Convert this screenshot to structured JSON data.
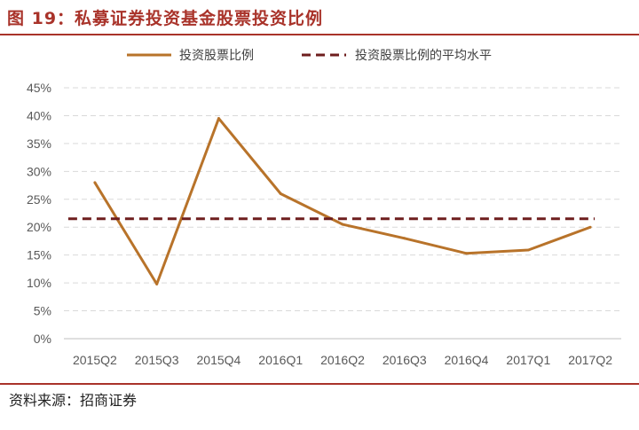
{
  "header": {
    "title": "图 19：私募证券投资基金股票投资比例"
  },
  "footer": {
    "source": "资料来源：招商证券"
  },
  "colors": {
    "accent": "#a9332a",
    "series_line": "#b8732a",
    "average_line": "#6e1e1e",
    "grid": "#d9d9d9",
    "tick_text": "#595959"
  },
  "chart_data": {
    "type": "line",
    "title": "",
    "xlabel": "",
    "ylabel": "",
    "categories": [
      "2015Q2",
      "2015Q3",
      "2015Q4",
      "2016Q1",
      "2016Q2",
      "2016Q3",
      "2016Q4",
      "2017Q1",
      "2017Q2"
    ],
    "y_ticks": [
      "0%",
      "5%",
      "10%",
      "15%",
      "20%",
      "25%",
      "30%",
      "35%",
      "40%",
      "45%"
    ],
    "ylim": [
      0,
      45
    ],
    "grid": true,
    "legend_position": "top",
    "series": [
      {
        "name": "投资股票比例",
        "style": "solid",
        "values": [
          28,
          9.8,
          39.5,
          26,
          20.5,
          18,
          15.3,
          15.9,
          20
        ]
      },
      {
        "name": "投资股票比例的平均水平",
        "style": "dashed",
        "values": [
          21.5,
          21.5,
          21.5,
          21.5,
          21.5,
          21.5,
          21.5,
          21.5,
          21.5
        ]
      }
    ]
  }
}
